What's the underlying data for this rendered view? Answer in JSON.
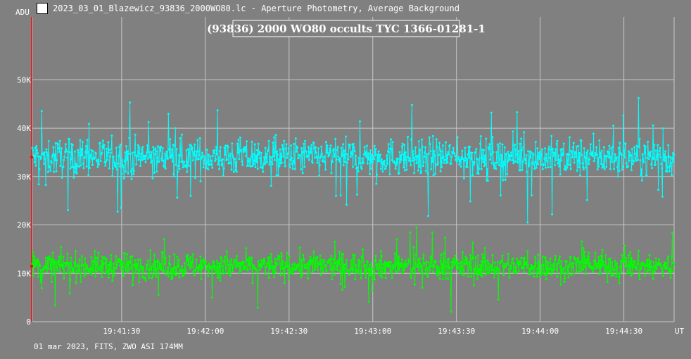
{
  "window": {
    "title": "2023_03_01_Blazewicz_93836_2000WO80.lc - Aperture Photometry, Average Background",
    "icon": "lightcurve-app-icon"
  },
  "footer": {
    "info": "01 mar 2023, FITS, ZWO ASI 174MM"
  },
  "colors": {
    "background": "#808080",
    "grid": "#c8c8c8",
    "target": "#00ffff",
    "comparison": "#00ff00",
    "marker": "#ff0000"
  },
  "chart_data": {
    "type": "scatter",
    "title": "(93836) 2000 WO80 occults TYC 1366-01281-1",
    "ylabel": "ADU",
    "xlabel": "UT",
    "ylim": [
      0,
      63000
    ],
    "xlim": [
      "19:40:58",
      "19:44:48"
    ],
    "y_ticks": [
      {
        "value": 0,
        "label": "0"
      },
      {
        "value": 10000,
        "label": "10K"
      },
      {
        "value": 20000,
        "label": "20K"
      },
      {
        "value": 30000,
        "label": "30K"
      },
      {
        "value": 40000,
        "label": "40K"
      },
      {
        "value": 50000,
        "label": "50K"
      }
    ],
    "x_ticks": [
      "19:41:30",
      "19:42:00",
      "19:42:30",
      "19:43:00",
      "19:43:30",
      "19:44:00",
      "19:44:30"
    ],
    "grid": true,
    "series": [
      {
        "mean": 34000,
        "spread": 3500,
        "color": "#00ffff"
      },
      {
        "mean": 11500,
        "spread": 2500,
        "color": "#00ff00"
      }
    ]
  }
}
